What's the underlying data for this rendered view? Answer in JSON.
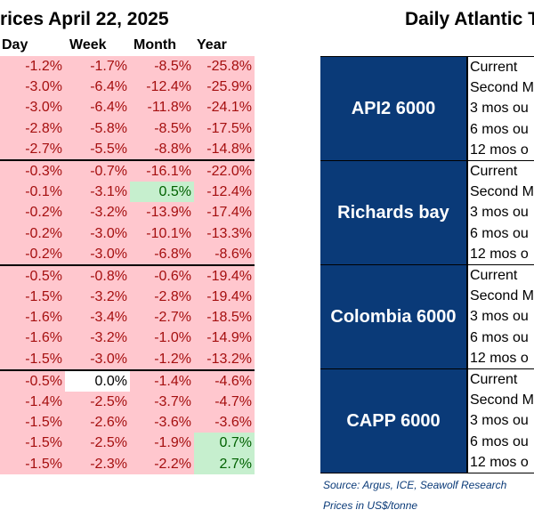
{
  "title_left": "rices April 22, 2025",
  "title_right": "Daily Atlantic T",
  "columns": [
    "Day",
    "Week",
    "Month",
    "Year"
  ],
  "groups": [
    {
      "rows": [
        {
          "day": "-1.2%",
          "week": "-1.7%",
          "month": "-8.5%",
          "year": "-25.8%"
        },
        {
          "day": "-3.0%",
          "week": "-6.4%",
          "month": "-12.4%",
          "year": "-25.9%"
        },
        {
          "day": "-3.0%",
          "week": "-6.4%",
          "month": "-11.8%",
          "year": "-24.1%"
        },
        {
          "day": "-2.8%",
          "week": "-5.8%",
          "month": "-8.5%",
          "year": "-17.5%"
        },
        {
          "day": "-2.7%",
          "week": "-5.5%",
          "month": "-8.8%",
          "year": "-14.8%"
        }
      ]
    },
    {
      "rows": [
        {
          "day": "-0.3%",
          "week": "-0.7%",
          "month": "-16.1%",
          "year": "-22.0%"
        },
        {
          "day": "-0.1%",
          "week": "-3.1%",
          "month": "0.5%",
          "year": "-12.4%"
        },
        {
          "day": "-0.2%",
          "week": "-3.2%",
          "month": "-13.9%",
          "year": "-17.4%"
        },
        {
          "day": "-0.2%",
          "week": "-3.0%",
          "month": "-10.1%",
          "year": "-13.3%"
        },
        {
          "day": "-0.2%",
          "week": "-3.0%",
          "month": "-6.8%",
          "year": "-8.6%"
        }
      ]
    },
    {
      "rows": [
        {
          "day": "-0.5%",
          "week": "-0.8%",
          "month": "-0.6%",
          "year": "-19.4%"
        },
        {
          "day": "-1.5%",
          "week": "-3.2%",
          "month": "-2.8%",
          "year": "-19.4%"
        },
        {
          "day": "-1.6%",
          "week": "-3.4%",
          "month": "-2.7%",
          "year": "-18.5%"
        },
        {
          "day": "-1.6%",
          "week": "-3.2%",
          "month": "-1.0%",
          "year": "-14.9%"
        },
        {
          "day": "-1.5%",
          "week": "-3.0%",
          "month": "-1.2%",
          "year": "-13.2%"
        }
      ]
    },
    {
      "rows": [
        {
          "day": "-0.5%",
          "week": "0.0%",
          "month": "-1.4%",
          "year": "-4.6%"
        },
        {
          "day": "-1.4%",
          "week": "-2.5%",
          "month": "-3.7%",
          "year": "-4.7%"
        },
        {
          "day": "-1.5%",
          "week": "-2.6%",
          "month": "-3.6%",
          "year": "-3.6%"
        },
        {
          "day": "-1.5%",
          "week": "-2.5%",
          "month": "-1.9%",
          "year": "0.7%"
        },
        {
          "day": "-1.5%",
          "week": "-2.3%",
          "month": "-2.2%",
          "year": "2.7%"
        }
      ]
    }
  ],
  "right_groups": [
    {
      "label": "API2 6000",
      "rows": [
        "Current",
        "Second M",
        "3 mos ou",
        "6 mos ou",
        "12 mos o"
      ]
    },
    {
      "label": "Richards bay",
      "rows": [
        "Current",
        "Second M",
        "3 mos ou",
        "6 mos ou",
        "12 mos o"
      ]
    },
    {
      "label": "Colombia 6000",
      "rows": [
        "Current",
        "Second M",
        "3 mos ou",
        "6 mos ou",
        "12 mos o"
      ]
    },
    {
      "label": "CAPP 6000",
      "rows": [
        "Current",
        "Second M",
        "3 mos ou",
        "6 mos ou",
        "12 mos o"
      ]
    }
  ],
  "source": "Source: Argus, ICE, Seawolf Research",
  "units": "Prices in US$/tonne",
  "colors": {
    "negative_bg": "#ffc7ce",
    "negative_text": "#a50f0f",
    "positive_bg": "#c6efce",
    "positive_text": "#006100",
    "label_bg": "#0a3a78"
  }
}
